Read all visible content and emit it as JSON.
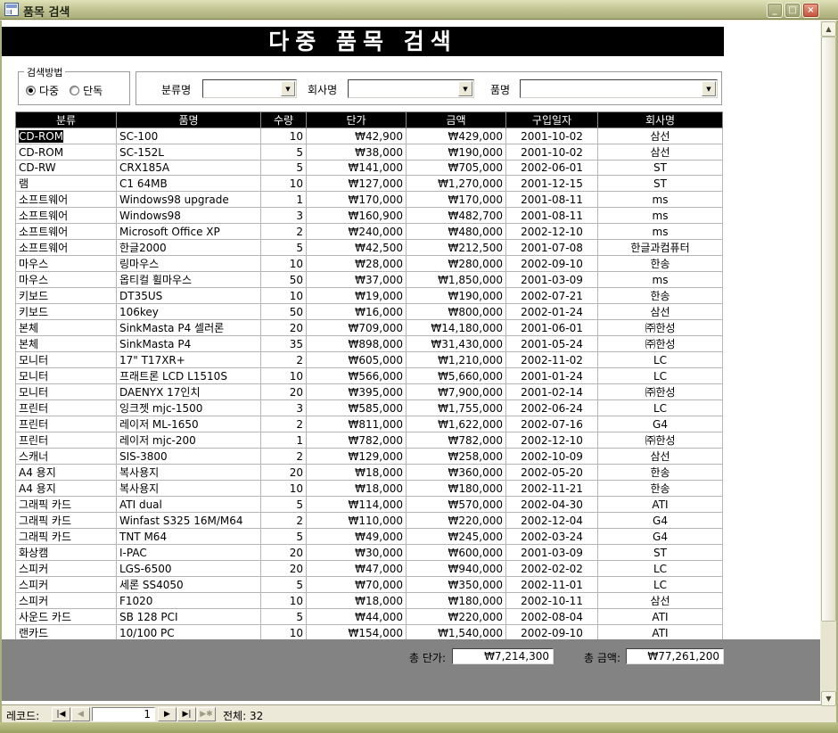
{
  "window": {
    "title": "품목 검색",
    "banner": "다중 품목 검색"
  },
  "icons": {
    "minimize": "_",
    "maximize": "□",
    "close": "×",
    "dropdown": "▼",
    "scroll_up": "▲",
    "scroll_down": "▼",
    "nav_first": "|◀",
    "nav_prev": "◀",
    "nav_next": "▶",
    "nav_last": "▶|",
    "nav_new": "▶✱"
  },
  "search": {
    "group_label": "검색방법",
    "radios": [
      {
        "label": "다중",
        "checked": true
      },
      {
        "label": "단독",
        "checked": false
      }
    ],
    "fields": [
      {
        "label": "분류명",
        "value": ""
      },
      {
        "label": "회사명",
        "value": ""
      },
      {
        "label": "품명",
        "value": ""
      }
    ]
  },
  "table": {
    "headers": [
      "분류",
      "품명",
      "수량",
      "단가",
      "금액",
      "구입일자",
      "회사명"
    ],
    "selected_cell": {
      "row": 0,
      "col": 0
    },
    "rows": [
      [
        "CD-ROM",
        "SC-100",
        "10",
        "₩42,900",
        "₩429,000",
        "2001-10-02",
        "삼선"
      ],
      [
        "CD-ROM",
        "SC-152L",
        "5",
        "₩38,000",
        "₩190,000",
        "2001-10-02",
        "삼선"
      ],
      [
        "CD-RW",
        "CRX185A",
        "5",
        "₩141,000",
        "₩705,000",
        "2002-06-01",
        "ST"
      ],
      [
        "램",
        "C1 64MB",
        "10",
        "₩127,000",
        "₩1,270,000",
        "2001-12-15",
        "ST"
      ],
      [
        "소프트웨어",
        "Windows98 upgrade",
        "1",
        "₩170,000",
        "₩170,000",
        "2001-08-11",
        "ms"
      ],
      [
        "소프트웨어",
        "Windows98",
        "3",
        "₩160,900",
        "₩482,700",
        "2001-08-11",
        "ms"
      ],
      [
        "소프트웨어",
        "Microsoft Office XP",
        "2",
        "₩240,000",
        "₩480,000",
        "2002-12-10",
        "ms"
      ],
      [
        "소프트웨어",
        "한글2000",
        "5",
        "₩42,500",
        "₩212,500",
        "2001-07-08",
        "한글과컴퓨터"
      ],
      [
        "마우스",
        "링마우스",
        "10",
        "₩28,000",
        "₩280,000",
        "2002-09-10",
        "한송"
      ],
      [
        "마우스",
        "옵티컬 휠마우스",
        "50",
        "₩37,000",
        "₩1,850,000",
        "2001-03-09",
        "ms"
      ],
      [
        "키보드",
        "DT35US",
        "10",
        "₩19,000",
        "₩190,000",
        "2002-07-21",
        "한송"
      ],
      [
        "키보드",
        "106key",
        "50",
        "₩16,000",
        "₩800,000",
        "2002-01-24",
        "삼선"
      ],
      [
        "본체",
        "SinkMasta P4 셀러론",
        "20",
        "₩709,000",
        "₩14,180,000",
        "2001-06-01",
        "㈜한성"
      ],
      [
        "본체",
        "SinkMasta P4",
        "35",
        "₩898,000",
        "₩31,430,000",
        "2001-05-24",
        "㈜한성"
      ],
      [
        "모니터",
        "17\" T17XR+",
        "2",
        "₩605,000",
        "₩1,210,000",
        "2002-11-02",
        "LC"
      ],
      [
        "모니터",
        "프래트론 LCD L1510S",
        "10",
        "₩566,000",
        "₩5,660,000",
        "2001-01-24",
        "LC"
      ],
      [
        "모니터",
        "DAENYX 17인치",
        "20",
        "₩395,000",
        "₩7,900,000",
        "2001-02-14",
        "㈜한성"
      ],
      [
        "프린터",
        "잉크젯 mjc-1500",
        "3",
        "₩585,000",
        "₩1,755,000",
        "2002-06-24",
        "LC"
      ],
      [
        "프린터",
        "레이저 ML-1650",
        "2",
        "₩811,000",
        "₩1,622,000",
        "2002-07-16",
        "G4"
      ],
      [
        "프린터",
        "레이저 mjc-200",
        "1",
        "₩782,000",
        "₩782,000",
        "2002-12-10",
        "㈜한성"
      ],
      [
        "스캐너",
        "SIS-3800",
        "2",
        "₩129,000",
        "₩258,000",
        "2002-10-09",
        "삼선"
      ],
      [
        "A4 용지",
        "복사용지",
        "20",
        "₩18,000",
        "₩360,000",
        "2002-05-20",
        "한송"
      ],
      [
        "A4 용지",
        "복사용지",
        "10",
        "₩18,000",
        "₩180,000",
        "2002-11-21",
        "한송"
      ],
      [
        "그래픽 카드",
        "ATI dual",
        "5",
        "₩114,000",
        "₩570,000",
        "2002-04-30",
        "ATI"
      ],
      [
        "그래픽 카드",
        "Winfast S325 16M/M64",
        "2",
        "₩110,000",
        "₩220,000",
        "2002-12-04",
        "G4"
      ],
      [
        "그래픽 카드",
        "TNT M64",
        "5",
        "₩49,000",
        "₩245,000",
        "2002-03-24",
        "G4"
      ],
      [
        "화상캠",
        "I-PAC",
        "20",
        "₩30,000",
        "₩600,000",
        "2001-03-09",
        "ST"
      ],
      [
        "스피커",
        "LGS-6500",
        "20",
        "₩47,000",
        "₩940,000",
        "2002-02-02",
        "LC"
      ],
      [
        "스피커",
        "세론 SS4050",
        "5",
        "₩70,000",
        "₩350,000",
        "2002-11-01",
        "LC"
      ],
      [
        "스피커",
        "F1020",
        "10",
        "₩18,000",
        "₩180,000",
        "2002-10-11",
        "삼선"
      ],
      [
        "사운드 카드",
        "SB 128 PCI",
        "5",
        "₩44,000",
        "₩220,000",
        "2002-08-04",
        "ATI"
      ],
      [
        "랜카드",
        "10/100 PC",
        "10",
        "₩154,000",
        "₩1,540,000",
        "2002-09-10",
        "ATI"
      ]
    ]
  },
  "totals": {
    "unit_label": "총 단가:",
    "unit_value": "₩7,214,300",
    "amount_label": "총 금액:",
    "amount_value": "₩77,261,200"
  },
  "nav": {
    "label": "레코드:",
    "current": "1",
    "total": "전체: 32"
  }
}
